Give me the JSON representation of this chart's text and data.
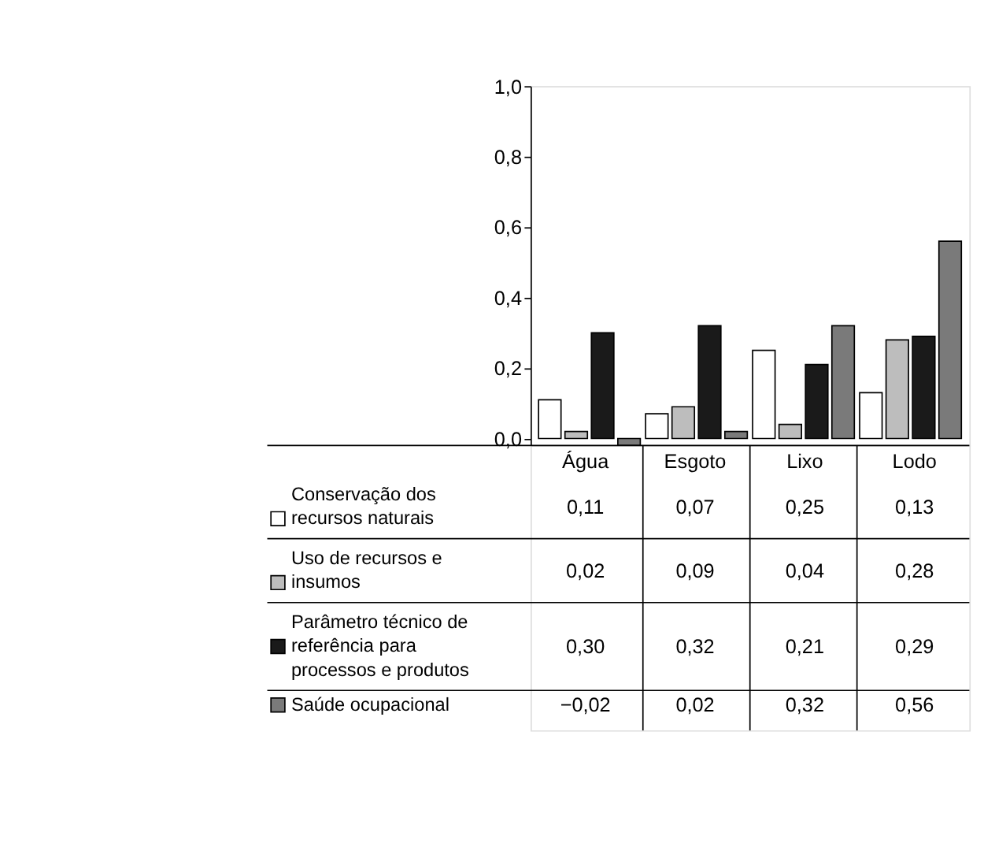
{
  "chart_data": {
    "type": "bar",
    "categories": [
      "Água",
      "Esgoto",
      "Lixo",
      "Lodo"
    ],
    "series": [
      {
        "name": "Conservação dos recursos naturais",
        "color": "#ffffff",
        "values": [
          0.11,
          0.07,
          0.25,
          0.13
        ],
        "value_labels": [
          "0,11",
          "0,07",
          "0,25",
          "0,13"
        ]
      },
      {
        "name": "Uso de recursos e insumos",
        "color": "#bdbdbd",
        "values": [
          0.02,
          0.09,
          0.04,
          0.28
        ],
        "value_labels": [
          "0,02",
          "0,09",
          "0,04",
          "0,28"
        ]
      },
      {
        "name": "Parâmetro técnico de referência para processos e produtos",
        "color": "#1a1a1a",
        "values": [
          0.3,
          0.32,
          0.21,
          0.29
        ],
        "value_labels": [
          "0,30",
          "0,32",
          "0,21",
          "0,29"
        ]
      },
      {
        "name": "Saúde ocupacional",
        "color": "#7a7a7a",
        "values": [
          -0.02,
          0.02,
          0.32,
          0.56
        ],
        "value_labels": [
          "−0,02",
          "0,02",
          "0,32",
          "0,56"
        ]
      }
    ],
    "ylim": [
      -0.02,
      1.0
    ],
    "yticks": [
      {
        "value": 0,
        "label": "0,0"
      },
      {
        "value": 0.2,
        "label": "0,2"
      },
      {
        "value": 0.4,
        "label": "0,4"
      },
      {
        "value": 0.6,
        "label": "0,6"
      },
      {
        "value": 0.8,
        "label": "0,8"
      },
      {
        "value": 1.0,
        "label": "1,0"
      }
    ],
    "grid": false,
    "legend": "bottom"
  }
}
